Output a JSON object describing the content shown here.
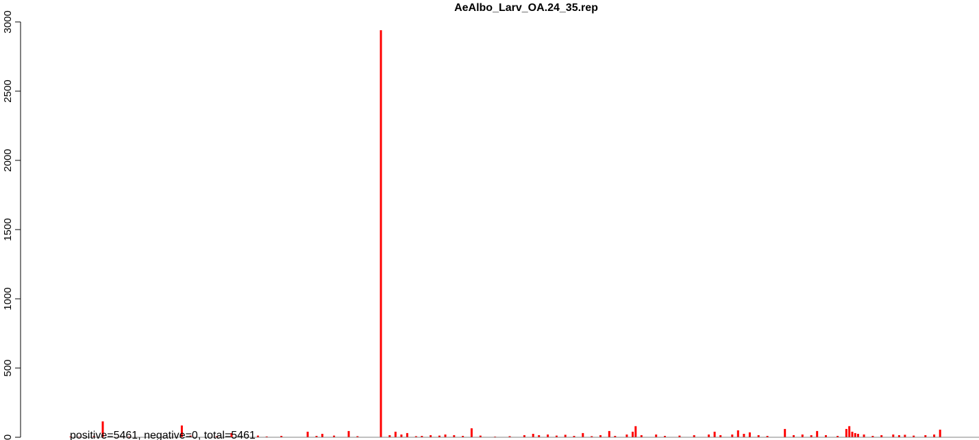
{
  "chart_data": {
    "type": "bar",
    "title": "AeAlbo_Larv_OA.24_35.rep",
    "xlabel": "",
    "ylabel": "",
    "ylim": [
      0,
      3000
    ],
    "yticks": [
      0,
      500,
      1000,
      1500,
      2000,
      2500,
      3000
    ],
    "ytick_labels": [
      "0",
      "500",
      "1000",
      "1500",
      "2000",
      "2500",
      "3000"
    ],
    "grid": false,
    "bar_color": "#ff0000",
    "axis_color": "#000000",
    "baseline_color": "#808080",
    "annotation": "positive=5461, negative=0, total=5461",
    "x_index_range": [
      0,
      300
    ],
    "bars": [
      {
        "x": 0,
        "value": 5
      },
      {
        "x": 3,
        "value": 4
      },
      {
        "x": 8,
        "value": 8
      },
      {
        "x": 11,
        "value": 115
      },
      {
        "x": 16,
        "value": 3
      },
      {
        "x": 20,
        "value": 5
      },
      {
        "x": 38,
        "value": 85
      },
      {
        "x": 41,
        "value": 12
      },
      {
        "x": 50,
        "value": 8
      },
      {
        "x": 55,
        "value": 30
      },
      {
        "x": 64,
        "value": 12
      },
      {
        "x": 67,
        "value": 6
      },
      {
        "x": 72,
        "value": 10
      },
      {
        "x": 81,
        "value": 40
      },
      {
        "x": 84,
        "value": 10
      },
      {
        "x": 86,
        "value": 25
      },
      {
        "x": 90,
        "value": 12
      },
      {
        "x": 95,
        "value": 45
      },
      {
        "x": 98,
        "value": 8
      },
      {
        "x": 106,
        "value": 2940
      },
      {
        "x": 109,
        "value": 15
      },
      {
        "x": 111,
        "value": 40
      },
      {
        "x": 113,
        "value": 20
      },
      {
        "x": 115,
        "value": 30
      },
      {
        "x": 118,
        "value": 8
      },
      {
        "x": 120,
        "value": 10
      },
      {
        "x": 123,
        "value": 15
      },
      {
        "x": 126,
        "value": 12
      },
      {
        "x": 128,
        "value": 20
      },
      {
        "x": 131,
        "value": 15
      },
      {
        "x": 134,
        "value": 10
      },
      {
        "x": 137,
        "value": 65
      },
      {
        "x": 140,
        "value": 12
      },
      {
        "x": 145,
        "value": 5
      },
      {
        "x": 150,
        "value": 8
      },
      {
        "x": 155,
        "value": 15
      },
      {
        "x": 158,
        "value": 25
      },
      {
        "x": 160,
        "value": 15
      },
      {
        "x": 163,
        "value": 20
      },
      {
        "x": 166,
        "value": 12
      },
      {
        "x": 169,
        "value": 18
      },
      {
        "x": 172,
        "value": 10
      },
      {
        "x": 175,
        "value": 30
      },
      {
        "x": 178,
        "value": 8
      },
      {
        "x": 181,
        "value": 15
      },
      {
        "x": 184,
        "value": 45
      },
      {
        "x": 186,
        "value": 10
      },
      {
        "x": 190,
        "value": 20
      },
      {
        "x": 192,
        "value": 40
      },
      {
        "x": 193,
        "value": 80
      },
      {
        "x": 195,
        "value": 15
      },
      {
        "x": 200,
        "value": 20
      },
      {
        "x": 203,
        "value": 10
      },
      {
        "x": 208,
        "value": 12
      },
      {
        "x": 213,
        "value": 15
      },
      {
        "x": 218,
        "value": 20
      },
      {
        "x": 220,
        "value": 40
      },
      {
        "x": 222,
        "value": 15
      },
      {
        "x": 226,
        "value": 20
      },
      {
        "x": 228,
        "value": 50
      },
      {
        "x": 230,
        "value": 25
      },
      {
        "x": 232,
        "value": 35
      },
      {
        "x": 235,
        "value": 15
      },
      {
        "x": 238,
        "value": 10
      },
      {
        "x": 244,
        "value": 60
      },
      {
        "x": 247,
        "value": 15
      },
      {
        "x": 250,
        "value": 20
      },
      {
        "x": 253,
        "value": 15
      },
      {
        "x": 255,
        "value": 45
      },
      {
        "x": 258,
        "value": 15
      },
      {
        "x": 262,
        "value": 10
      },
      {
        "x": 265,
        "value": 60
      },
      {
        "x": 266,
        "value": 80
      },
      {
        "x": 267,
        "value": 40
      },
      {
        "x": 268,
        "value": 30
      },
      {
        "x": 269,
        "value": 25
      },
      {
        "x": 271,
        "value": 20
      },
      {
        "x": 274,
        "value": 10
      },
      {
        "x": 277,
        "value": 15
      },
      {
        "x": 281,
        "value": 20
      },
      {
        "x": 283,
        "value": 15
      },
      {
        "x": 285,
        "value": 18
      },
      {
        "x": 288,
        "value": 12
      },
      {
        "x": 292,
        "value": 15
      },
      {
        "x": 295,
        "value": 20
      },
      {
        "x": 297,
        "value": 55
      }
    ]
  }
}
